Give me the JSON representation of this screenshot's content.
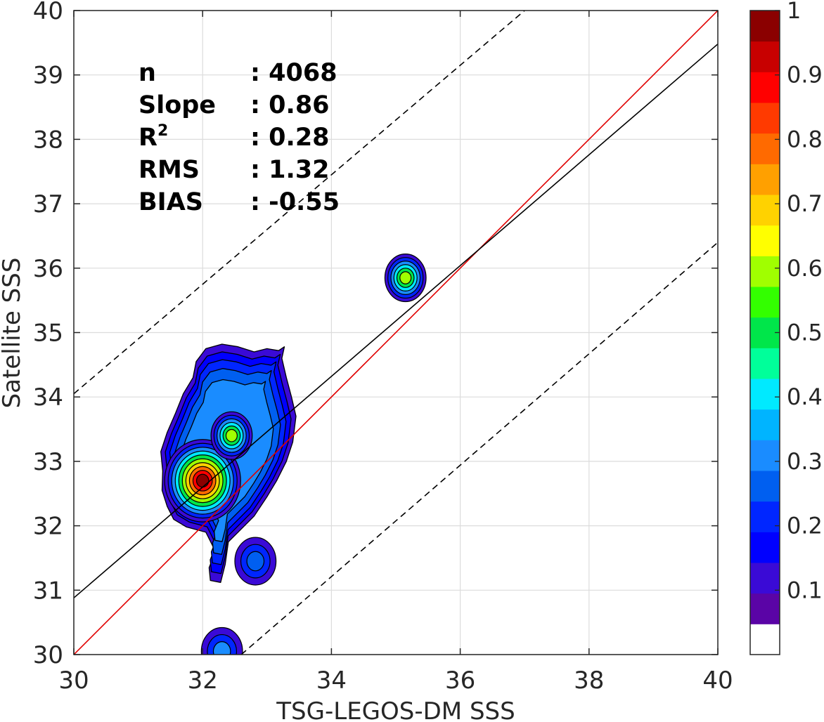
{
  "chart_data": {
    "type": "heatmap",
    "subtype": "filled-contour density with regression lines",
    "xlabel": "TSG-LEGOS-DM SSS",
    "ylabel": "Satellite SSS",
    "xlim": [
      30,
      40
    ],
    "ylim": [
      30,
      40
    ],
    "x_ticks": [
      "30",
      "32",
      "34",
      "36",
      "38",
      "40"
    ],
    "y_ticks": [
      "30",
      "31",
      "32",
      "33",
      "34",
      "35",
      "36",
      "37",
      "38",
      "39",
      "40"
    ],
    "grid": true,
    "stats": [
      {
        "name": "n",
        "value": ": 4068"
      },
      {
        "name": "Slope",
        "value": ": 0.86"
      },
      {
        "name": "R",
        "superscript": "2",
        "value": ": 0.28"
      },
      {
        "name": "RMS",
        "value": ": 1.32"
      },
      {
        "name": "BIAS",
        "value": ": -0.55"
      }
    ],
    "lines": [
      {
        "name": "one-to-one",
        "color": "#e00000",
        "style": "solid",
        "points": [
          [
            30,
            30
          ],
          [
            40,
            40
          ]
        ]
      },
      {
        "name": "regression",
        "color": "#000000",
        "style": "solid",
        "points": [
          [
            30,
            30.88
          ],
          [
            40,
            39.48
          ]
        ]
      },
      {
        "name": "upper-bound",
        "color": "#000000",
        "style": "dashed",
        "points": [
          [
            30,
            34.05
          ],
          [
            37.0,
            40.0
          ]
        ]
      },
      {
        "name": "lower-bound",
        "color": "#000000",
        "style": "dashed",
        "points": [
          [
            32.6,
            30.0
          ],
          [
            40,
            36.4
          ]
        ]
      }
    ],
    "density_peaks": [
      {
        "x": 32.0,
        "y": 32.7,
        "level": 1.0
      },
      {
        "x": 32.45,
        "y": 33.4,
        "level": 0.6
      },
      {
        "x": 35.15,
        "y": 35.85,
        "level": 0.6
      },
      {
        "x": 32.82,
        "y": 31.45,
        "level": 0.25
      },
      {
        "x": 32.3,
        "y": 30.05,
        "level": 0.3
      }
    ],
    "colorbar": {
      "range": [
        0,
        1
      ],
      "levels": 20,
      "tick_labels": [
        "0.1",
        "0.2",
        "0.3",
        "0.4",
        "0.5",
        "0.6",
        "0.7",
        "0.8",
        "0.9",
        "1"
      ],
      "tick_values": [
        0.1,
        0.2,
        0.3,
        0.4,
        0.5,
        0.6,
        0.7,
        0.8,
        0.9,
        1.0
      ],
      "colors": [
        "#ffffff",
        "#5a04a6",
        "#3a0ad6",
        "#0000ff",
        "#0026ff",
        "#005ff0",
        "#1a8cff",
        "#00b4ff",
        "#00eaff",
        "#00ff9a",
        "#00e64a",
        "#33ff00",
        "#a0ff00",
        "#ffff00",
        "#ffd200",
        "#ffa000",
        "#ff6a00",
        "#ff3a00",
        "#ff0000",
        "#c80000",
        "#8b0000"
      ]
    }
  }
}
